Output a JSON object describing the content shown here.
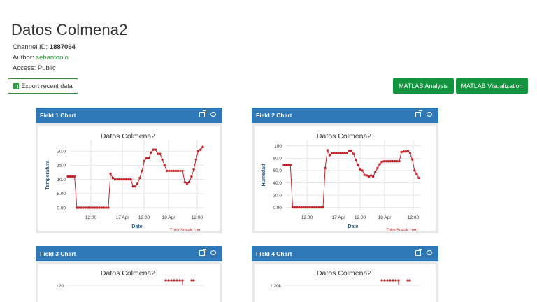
{
  "page": {
    "title": "Datos Colmena2",
    "channel_id_label": "Channel ID:",
    "channel_id": "1887094",
    "author_label": "Author:",
    "author": "sebantonio",
    "access_label": "Access:",
    "access": "Public"
  },
  "toolbar": {
    "export_label": "Export recent data",
    "matlab_analysis_label": "MATLAB Analysis",
    "matlab_visualization_label": "MATLAB Visualization"
  },
  "colors": {
    "panel_header": "#2f78b7",
    "button_green": "#12933d",
    "series": "#c1272d"
  },
  "panels": [
    {
      "title": "Field 1 Chart",
      "expand_icon": "external-link-icon",
      "comment_icon": "comment-icon"
    },
    {
      "title": "Field 2 Chart",
      "expand_icon": "external-link-icon",
      "comment_icon": "comment-icon"
    },
    {
      "title": "Field 3 Chart",
      "expand_icon": "external-link-icon",
      "comment_icon": "comment-icon"
    },
    {
      "title": "Field 4 Chart",
      "expand_icon": "external-link-icon",
      "comment_icon": "comment-icon"
    }
  ],
  "chart_data": [
    {
      "type": "line",
      "title": "Datos Colmena2",
      "xlabel": "Date",
      "ylabel": "Temperatura",
      "credit": "ThingSpeak.com",
      "x_ticks": [
        "12:00",
        "17 Apr",
        "12:00",
        "18 Apr",
        "12:00"
      ],
      "y_ticks": [
        "0.00",
        "5.00",
        "10.0",
        "15.0",
        "20.0"
      ],
      "ylim": [
        -1,
        24
      ],
      "grid": true,
      "series": [
        {
          "values": [
            11,
            11,
            11,
            11,
            0,
            0,
            0,
            0,
            0,
            0,
            0,
            0,
            0,
            0,
            0,
            0,
            0,
            0,
            0,
            12,
            10.5,
            10,
            10,
            10,
            10,
            10,
            10,
            10,
            10,
            7.5,
            7.5,
            8.5,
            10.5,
            13,
            16.5,
            17.5,
            17.5,
            19.5,
            20.5,
            20.5,
            19,
            19,
            17,
            15,
            13,
            13,
            13,
            13,
            13,
            13,
            13,
            13,
            9,
            8.5,
            9,
            11,
            13.5,
            17,
            20,
            20.5,
            21.5
          ]
        }
      ]
    },
    {
      "type": "line",
      "title": "Datos Colmena2",
      "xlabel": "Date",
      "ylabel": "Humedad",
      "credit": "ThingSpeak.com",
      "x_ticks": [
        "12:00",
        "17 Apr",
        "12:00",
        "18 Apr",
        "12:00"
      ],
      "y_ticks": [
        "0.00",
        "20.0",
        "40.0",
        "60.0",
        "80.0",
        "100"
      ],
      "ylim": [
        -5,
        110
      ],
      "grid": true,
      "series": [
        {
          "values": [
            69,
            69,
            69,
            69,
            0,
            0,
            0,
            0,
            0,
            0,
            0,
            0,
            0,
            0,
            0,
            0,
            0,
            0,
            0,
            64,
            93,
            85,
            88,
            88,
            88,
            88,
            88,
            88,
            88,
            88,
            92,
            92,
            87,
            77,
            69,
            62,
            60,
            53,
            52,
            50,
            52,
            50,
            57,
            64,
            70,
            74,
            75,
            75,
            75,
            75,
            75,
            75,
            75,
            75,
            90,
            91,
            91,
            92,
            88,
            78,
            60,
            54,
            48
          ]
        }
      ]
    },
    {
      "type": "line",
      "title": "Datos Colmena2",
      "y_ticks": [
        "120"
      ],
      "series": [
        {
          "values": []
        }
      ]
    },
    {
      "type": "line",
      "title": "Datos Colmena2",
      "y_ticks": [
        "1.20k"
      ],
      "series": [
        {
          "values": []
        }
      ]
    }
  ]
}
